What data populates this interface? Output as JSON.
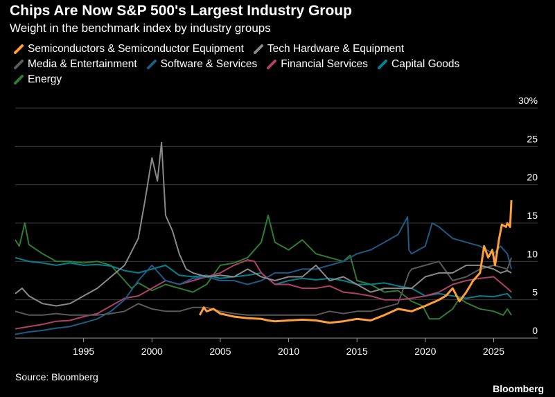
{
  "title": "Chips Are Now S&P 500's Largest Industry Group",
  "subtitle": "Weight in the benchmark index by industry groups",
  "source": "Source: Bloomberg",
  "brand": "Bloomberg",
  "legend_rows": [
    [
      "Semiconductors & Semiconductor Equipment",
      "Tech Hardware & Equipment"
    ],
    [
      "Media & Entertainment",
      "Software & Services",
      "Financial Services",
      "Capital Goods"
    ],
    [
      "Energy"
    ]
  ],
  "chart_data": {
    "type": "line",
    "title": "Chips Are Now S&P 500's Largest Industry Group",
    "subtitle": "Weight in the benchmark index by industry groups",
    "xlabel": "",
    "ylabel": "",
    "xlim": [
      1990.0,
      2026.8
    ],
    "ylim": [
      0,
      30
    ],
    "x_ticks": [
      1995,
      2000,
      2005,
      2010,
      2015,
      2020,
      2025
    ],
    "y_ticks": [
      0,
      5,
      10,
      15,
      20,
      25,
      30
    ],
    "y_tick_labels": [
      "0",
      "5",
      "10",
      "15",
      "20",
      "25",
      "30%"
    ],
    "grid": "horizontal",
    "legend_position": "top-left",
    "series": [
      {
        "name": "Energy",
        "color": "#2e7d32",
        "points": [
          [
            1990.0,
            12.8
          ],
          [
            1990.3,
            12.0
          ],
          [
            1990.7,
            15.0
          ],
          [
            1991.0,
            12.2
          ],
          [
            1992.0,
            11.0
          ],
          [
            1993.0,
            10.0
          ],
          [
            1994.0,
            10.0
          ],
          [
            1995.0,
            9.8
          ],
          [
            1996.0,
            10.0
          ],
          [
            1997.0,
            9.5
          ],
          [
            1998.0,
            7.5
          ],
          [
            1998.5,
            6.5
          ],
          [
            1999.0,
            7.2
          ],
          [
            2000.0,
            6.2
          ],
          [
            2001.0,
            7.0
          ],
          [
            2002.0,
            6.5
          ],
          [
            2003.0,
            6.0
          ],
          [
            2004.0,
            7.0
          ],
          [
            2005.0,
            9.5
          ],
          [
            2006.0,
            9.8
          ],
          [
            2007.0,
            10.5
          ],
          [
            2008.0,
            12.5
          ],
          [
            2008.5,
            16.0
          ],
          [
            2009.0,
            12.5
          ],
          [
            2010.0,
            11.5
          ],
          [
            2011.0,
            12.8
          ],
          [
            2012.0,
            11.0
          ],
          [
            2013.0,
            10.5
          ],
          [
            2014.0,
            10.0
          ],
          [
            2014.5,
            10.8
          ],
          [
            2015.0,
            7.5
          ],
          [
            2016.0,
            7.0
          ],
          [
            2017.0,
            6.0
          ],
          [
            2018.0,
            6.2
          ],
          [
            2019.0,
            4.8
          ],
          [
            2019.8,
            4.2
          ],
          [
            2020.3,
            2.5
          ],
          [
            2021.0,
            2.5
          ],
          [
            2022.0,
            3.8
          ],
          [
            2022.5,
            5.2
          ],
          [
            2023.0,
            4.6
          ],
          [
            2024.0,
            3.8
          ],
          [
            2025.0,
            3.5
          ],
          [
            2025.7,
            3.0
          ],
          [
            2026.0,
            3.8
          ],
          [
            2026.3,
            3.0
          ]
        ]
      },
      {
        "name": "Capital Goods",
        "color": "#00838f",
        "points": [
          [
            1990.0,
            10.5
          ],
          [
            1991.0,
            10.0
          ],
          [
            1992.0,
            9.8
          ],
          [
            1993.0,
            9.5
          ],
          [
            1994.0,
            9.8
          ],
          [
            1995.0,
            9.5
          ],
          [
            1996.0,
            9.6
          ],
          [
            1997.0,
            9.4
          ],
          [
            1998.0,
            8.8
          ],
          [
            1999.0,
            8.5
          ],
          [
            2000.0,
            9.0
          ],
          [
            2001.0,
            9.5
          ],
          [
            2002.0,
            8.2
          ],
          [
            2003.0,
            8.0
          ],
          [
            2004.0,
            8.2
          ],
          [
            2005.0,
            7.8
          ],
          [
            2006.0,
            8.0
          ],
          [
            2007.0,
            8.2
          ],
          [
            2008.0,
            8.5
          ],
          [
            2009.0,
            7.0
          ],
          [
            2010.0,
            7.5
          ],
          [
            2011.0,
            7.8
          ],
          [
            2012.0,
            7.6
          ],
          [
            2013.0,
            7.8
          ],
          [
            2014.0,
            7.5
          ],
          [
            2015.0,
            7.0
          ],
          [
            2016.0,
            7.0
          ],
          [
            2017.0,
            7.2
          ],
          [
            2018.0,
            6.8
          ],
          [
            2019.0,
            6.5
          ],
          [
            2020.0,
            5.5
          ],
          [
            2021.0,
            5.8
          ],
          [
            2022.0,
            5.5
          ],
          [
            2023.0,
            5.2
          ],
          [
            2024.0,
            5.5
          ],
          [
            2025.0,
            5.4
          ],
          [
            2026.0,
            5.8
          ],
          [
            2026.3,
            5.2
          ]
        ]
      },
      {
        "name": "Financial Services",
        "color": "#b0416a",
        "points": [
          [
            1990.0,
            1.2
          ],
          [
            1991.0,
            1.5
          ],
          [
            1992.0,
            1.8
          ],
          [
            1993.0,
            2.2
          ],
          [
            1994.0,
            2.3
          ],
          [
            1995.0,
            2.8
          ],
          [
            1996.0,
            3.2
          ],
          [
            1997.0,
            4.2
          ],
          [
            1998.0,
            5.2
          ],
          [
            1999.0,
            5.5
          ],
          [
            2000.0,
            6.5
          ],
          [
            2001.0,
            7.5
          ],
          [
            2002.0,
            7.0
          ],
          [
            2003.0,
            7.5
          ],
          [
            2004.0,
            8.0
          ],
          [
            2005.0,
            8.5
          ],
          [
            2006.0,
            9.5
          ],
          [
            2007.0,
            10.2
          ],
          [
            2007.5,
            10.0
          ],
          [
            2008.0,
            8.5
          ],
          [
            2009.0,
            7.0
          ],
          [
            2010.0,
            7.0
          ],
          [
            2011.0,
            6.5
          ],
          [
            2012.0,
            6.5
          ],
          [
            2013.0,
            6.8
          ],
          [
            2014.0,
            6.0
          ],
          [
            2015.0,
            5.8
          ],
          [
            2016.0,
            5.5
          ],
          [
            2017.0,
            5.0
          ],
          [
            2018.0,
            5.0
          ],
          [
            2019.0,
            5.2
          ],
          [
            2020.0,
            5.5
          ],
          [
            2021.0,
            6.0
          ],
          [
            2022.0,
            7.0
          ],
          [
            2023.0,
            7.5
          ],
          [
            2024.0,
            7.8
          ],
          [
            2025.0,
            8.0
          ],
          [
            2026.0,
            6.5
          ],
          [
            2026.3,
            6.0
          ]
        ]
      },
      {
        "name": "Software & Services",
        "color": "#1e5a86",
        "points": [
          [
            1990.0,
            0.5
          ],
          [
            1991.0,
            0.8
          ],
          [
            1992.0,
            1.0
          ],
          [
            1993.0,
            1.3
          ],
          [
            1994.0,
            1.5
          ],
          [
            1995.0,
            2.0
          ],
          [
            1996.0,
            2.5
          ],
          [
            1997.0,
            3.5
          ],
          [
            1998.0,
            5.0
          ],
          [
            1999.0,
            7.5
          ],
          [
            2000.0,
            9.5
          ],
          [
            2001.0,
            7.5
          ],
          [
            2002.0,
            7.0
          ],
          [
            2003.0,
            7.8
          ],
          [
            2004.0,
            8.0
          ],
          [
            2005.0,
            7.5
          ],
          [
            2006.0,
            7.5
          ],
          [
            2007.0,
            7.0
          ],
          [
            2008.0,
            7.5
          ],
          [
            2009.0,
            8.5
          ],
          [
            2010.0,
            8.5
          ],
          [
            2011.0,
            9.0
          ],
          [
            2012.0,
            9.0
          ],
          [
            2013.0,
            9.5
          ],
          [
            2014.0,
            10.0
          ],
          [
            2015.0,
            11.0
          ],
          [
            2016.0,
            11.5
          ],
          [
            2017.0,
            12.5
          ],
          [
            2018.0,
            13.5
          ],
          [
            2018.7,
            15.8
          ],
          [
            2018.8,
            11.5
          ],
          [
            2019.0,
            11.0
          ],
          [
            2020.0,
            12.0
          ],
          [
            2020.5,
            15.0
          ],
          [
            2021.0,
            14.5
          ],
          [
            2022.0,
            13.0
          ],
          [
            2023.0,
            12.5
          ],
          [
            2024.0,
            12.0
          ],
          [
            2025.0,
            11.0
          ],
          [
            2025.5,
            12.0
          ],
          [
            2026.0,
            11.0
          ],
          [
            2026.3,
            9.0
          ]
        ]
      },
      {
        "name": "Media & Entertainment",
        "color": "#5a5a5a",
        "points": [
          [
            1990.0,
            3.5
          ],
          [
            1991.0,
            3.0
          ],
          [
            1992.0,
            3.0
          ],
          [
            1993.0,
            3.2
          ],
          [
            1994.0,
            3.0
          ],
          [
            1995.0,
            3.0
          ],
          [
            1996.0,
            3.0
          ],
          [
            1997.0,
            3.2
          ],
          [
            1998.0,
            3.5
          ],
          [
            1999.0,
            4.5
          ],
          [
            2000.0,
            3.8
          ],
          [
            2001.0,
            3.5
          ],
          [
            2002.0,
            3.5
          ],
          [
            2003.0,
            4.0
          ],
          [
            2004.0,
            4.0
          ],
          [
            2005.0,
            3.5
          ],
          [
            2006.0,
            3.2
          ],
          [
            2007.0,
            3.0
          ],
          [
            2008.0,
            3.0
          ],
          [
            2009.0,
            3.0
          ],
          [
            2010.0,
            3.0
          ],
          [
            2011.0,
            3.0
          ],
          [
            2012.0,
            3.0
          ],
          [
            2013.0,
            3.5
          ],
          [
            2014.0,
            3.2
          ],
          [
            2015.0,
            3.5
          ],
          [
            2016.0,
            3.5
          ],
          [
            2017.0,
            4.0
          ],
          [
            2018.0,
            4.5
          ],
          [
            2018.8,
            8.5
          ],
          [
            2019.0,
            9.0
          ],
          [
            2020.0,
            9.5
          ],
          [
            2021.0,
            10.0
          ],
          [
            2022.0,
            7.5
          ],
          [
            2023.0,
            8.0
          ],
          [
            2024.0,
            9.0
          ],
          [
            2025.0,
            9.5
          ],
          [
            2026.0,
            9.0
          ],
          [
            2026.3,
            10.5
          ]
        ]
      },
      {
        "name": "Tech Hardware & Equipment",
        "color": "#8a8a8a",
        "points": [
          [
            1990.0,
            5.8
          ],
          [
            1990.5,
            6.5
          ],
          [
            1991.0,
            5.5
          ],
          [
            1992.0,
            4.5
          ],
          [
            1993.0,
            4.2
          ],
          [
            1994.0,
            4.5
          ],
          [
            1995.0,
            5.5
          ],
          [
            1996.0,
            6.5
          ],
          [
            1997.0,
            8.0
          ],
          [
            1998.0,
            9.5
          ],
          [
            1999.0,
            13.0
          ],
          [
            1999.5,
            18.0
          ],
          [
            2000.0,
            23.5
          ],
          [
            2000.4,
            20.5
          ],
          [
            2000.7,
            25.5
          ],
          [
            2001.0,
            16.0
          ],
          [
            2001.5,
            14.0
          ],
          [
            2002.0,
            11.0
          ],
          [
            2002.5,
            9.0
          ],
          [
            2003.0,
            8.5
          ],
          [
            2004.0,
            8.0
          ],
          [
            2005.0,
            8.2
          ],
          [
            2006.0,
            8.0
          ],
          [
            2007.0,
            9.0
          ],
          [
            2008.0,
            8.0
          ],
          [
            2009.0,
            7.5
          ],
          [
            2010.0,
            8.0
          ],
          [
            2011.0,
            8.0
          ],
          [
            2012.0,
            9.5
          ],
          [
            2013.0,
            7.5
          ],
          [
            2014.0,
            8.0
          ],
          [
            2015.0,
            7.0
          ],
          [
            2016.0,
            6.0
          ],
          [
            2017.0,
            6.5
          ],
          [
            2018.0,
            6.5
          ],
          [
            2019.0,
            6.5
          ],
          [
            2020.0,
            8.0
          ],
          [
            2021.0,
            8.5
          ],
          [
            2022.0,
            8.5
          ],
          [
            2023.0,
            9.5
          ],
          [
            2024.0,
            9.5
          ],
          [
            2025.0,
            9.0
          ],
          [
            2025.5,
            8.5
          ],
          [
            2026.0,
            8.8
          ],
          [
            2026.3,
            8.5
          ]
        ]
      },
      {
        "name": "Semiconductors & Semiconductor Equipment",
        "color": "#ff9f3b",
        "points": [
          [
            2003.5,
            3.0
          ],
          [
            2003.8,
            4.0
          ],
          [
            2004.0,
            3.5
          ],
          [
            2004.5,
            3.8
          ],
          [
            2005.0,
            3.2
          ],
          [
            2005.5,
            3.0
          ],
          [
            2006.0,
            2.8
          ],
          [
            2007.0,
            2.6
          ],
          [
            2008.0,
            2.5
          ],
          [
            2008.5,
            2.3
          ],
          [
            2009.0,
            2.2
          ],
          [
            2010.0,
            2.3
          ],
          [
            2011.0,
            2.4
          ],
          [
            2012.0,
            2.3
          ],
          [
            2013.0,
            2.0
          ],
          [
            2014.0,
            2.2
          ],
          [
            2015.0,
            2.5
          ],
          [
            2016.0,
            2.3
          ],
          [
            2017.0,
            3.0
          ],
          [
            2018.0,
            3.8
          ],
          [
            2019.0,
            3.5
          ],
          [
            2020.0,
            4.2
          ],
          [
            2021.0,
            5.0
          ],
          [
            2021.5,
            5.5
          ],
          [
            2022.0,
            6.5
          ],
          [
            2022.5,
            4.8
          ],
          [
            2023.0,
            6.0
          ],
          [
            2023.5,
            7.5
          ],
          [
            2024.0,
            8.5
          ],
          [
            2024.3,
            12.0
          ],
          [
            2024.6,
            10.5
          ],
          [
            2024.9,
            11.5
          ],
          [
            2025.1,
            9.5
          ],
          [
            2025.4,
            13.0
          ],
          [
            2025.6,
            14.8
          ],
          [
            2025.9,
            14.5
          ],
          [
            2026.0,
            15.0
          ],
          [
            2026.2,
            14.5
          ],
          [
            2026.3,
            18.0
          ]
        ]
      }
    ]
  }
}
